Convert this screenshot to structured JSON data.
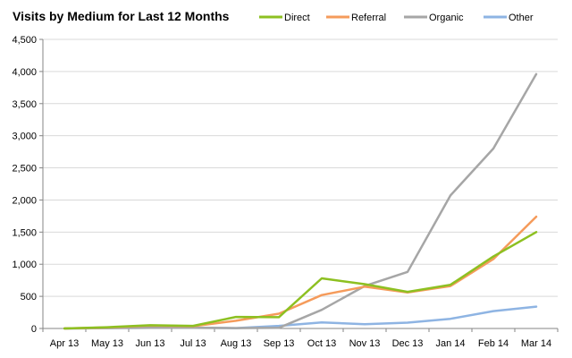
{
  "chart_data": {
    "type": "line",
    "title": "Visits by Medium for Last 12 Months",
    "xlabel": "",
    "ylabel": "",
    "categories": [
      "Apr 13",
      "May 13",
      "Jun 13",
      "Jul 13",
      "Aug 13",
      "Sep 13",
      "Oct 13",
      "Nov 13",
      "Dec 13",
      "Jan 14",
      "Feb 14",
      "Mar 14"
    ],
    "ylim": [
      0,
      4500
    ],
    "yticks": [
      0,
      500,
      1000,
      1500,
      2000,
      2500,
      3000,
      3500,
      4000,
      4500
    ],
    "ytick_labels": [
      "0",
      "500",
      "1,000",
      "1,500",
      "2,000",
      "2,500",
      "3,000",
      "3,500",
      "4,000",
      "4,500"
    ],
    "grid": "horizontal",
    "legend_position": "top-right",
    "series": [
      {
        "name": "Direct",
        "color": "#8dc021",
        "values": [
          0,
          20,
          50,
          40,
          180,
          175,
          780,
          690,
          570,
          680,
          1120,
          1500
        ]
      },
      {
        "name": "Referral",
        "color": "#f59b5b",
        "values": [
          0,
          15,
          45,
          35,
          120,
          230,
          520,
          650,
          560,
          660,
          1080,
          1740
        ]
      },
      {
        "name": "Organic",
        "color": "#a6a6a6",
        "values": [
          0,
          5,
          10,
          10,
          5,
          10,
          290,
          660,
          880,
          2070,
          2800,
          3960
        ]
      },
      {
        "name": "Other",
        "color": "#8eb4e3",
        "values": [
          0,
          5,
          10,
          10,
          5,
          40,
          95,
          65,
          90,
          150,
          270,
          340
        ]
      }
    ]
  }
}
